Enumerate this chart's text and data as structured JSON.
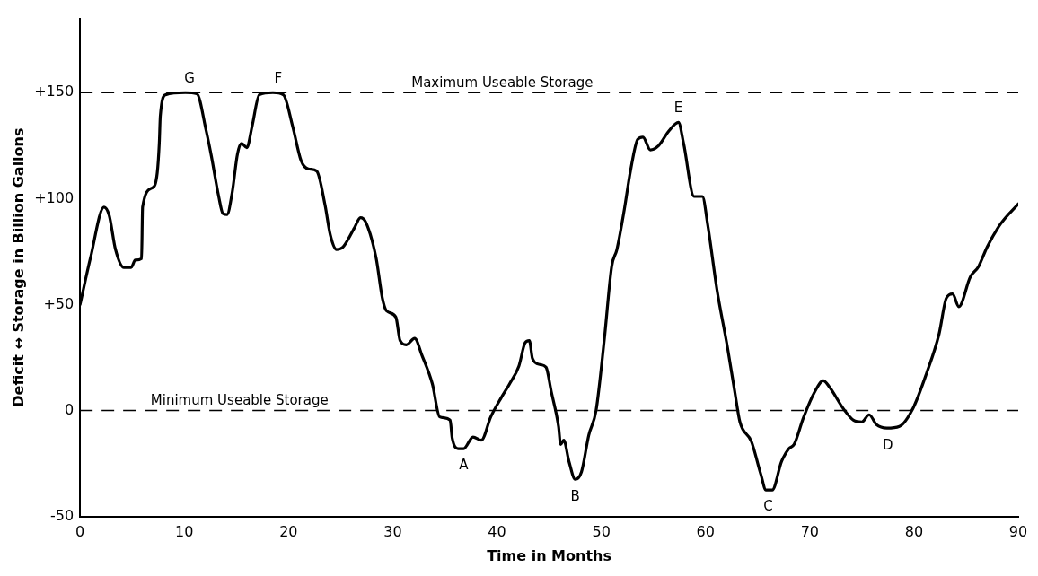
{
  "chart_data": {
    "type": "line",
    "xlabel": "Time in Months",
    "ylabel": "Deficit ↔ Storage in Billion Gallons",
    "xlim": [
      0,
      90
    ],
    "xticks": [
      0,
      10,
      20,
      30,
      40,
      50,
      60,
      70,
      80,
      90
    ],
    "ylim": [
      -50,
      185
    ],
    "yticks": [
      {
        "value": -50,
        "label": "-50"
      },
      {
        "value": 0,
        "label": "0"
      },
      {
        "value": 50,
        "label": "+50"
      },
      {
        "value": 100,
        "label": "+100"
      },
      {
        "value": 150,
        "label": "+150"
      }
    ],
    "grid": false,
    "legend": false,
    "marker": "none",
    "line_style": "solid",
    "series": [
      {
        "color": "#000000",
        "x": [
          0,
          1,
          2.3,
          2.8,
          3.4,
          4.2,
          4.9,
          5.3,
          5.9,
          6.0,
          6.9,
          7.4,
          7.6,
          7.7,
          8.2,
          10.1,
          11.2,
          12.1,
          12.6,
          13.3,
          13.7,
          14.1,
          14.6,
          15.1,
          15.5,
          16,
          16.5,
          17.2,
          18.5,
          19.5,
          20.4,
          21.2,
          21.9,
          22.7,
          23.5,
          24,
          24.6,
          25.2,
          26.3,
          26.9,
          27.4,
          28.4,
          29,
          29.4,
          30.3,
          30.7,
          31.3,
          32.1,
          32.8,
          33.8,
          34.5,
          35.5,
          35.7,
          36.3,
          36.8,
          37.7,
          38.5,
          39.4,
          40.4,
          41.2,
          42.1,
          42.7,
          43.1,
          43.4,
          44.1,
          44.7,
          45.2,
          45.9,
          46.1,
          46.4,
          46.9,
          47.5,
          48.1,
          48.8,
          49.5,
          50.3,
          51,
          51.5,
          52.2,
          52.8,
          53.5,
          54,
          54.7,
          55.5,
          56.5,
          57.4,
          57.9,
          58.9,
          59.7,
          60.2,
          61.1,
          62.1,
          62.8,
          63.3,
          64.4,
          65.3,
          65.8,
          66.4,
          67.3,
          68,
          68.5,
          69.4,
          70.5,
          71.3,
          71.9,
          73.2,
          74.2,
          75,
          75.7,
          76.4,
          77.4,
          78.6,
          79.9,
          81.2,
          82.4,
          83.1,
          83.7,
          84.3,
          85.4,
          86.2,
          87,
          88.3,
          90
        ],
        "values": [
          50,
          72,
          96,
          92,
          76,
          67.5,
          67.5,
          71,
          71.7,
          96,
          105,
          112,
          126,
          139,
          149,
          150,
          149.5,
          132,
          120,
          101,
          93,
          92.5,
          103,
          121,
          126,
          124,
          134,
          149,
          150,
          149,
          134,
          118,
          114,
          113,
          97,
          83,
          76,
          77,
          86,
          91,
          89,
          72,
          53,
          47,
          44,
          33,
          31,
          34,
          26,
          12.5,
          -3,
          -4.5,
          -13,
          -18,
          -18,
          -12.5,
          -14,
          -3,
          6,
          12.5,
          21,
          32,
          33,
          24.5,
          21.7,
          20.4,
          9,
          -7.5,
          -16,
          -14,
          -24,
          -32.5,
          -29,
          -11.7,
          0,
          34,
          68,
          76,
          94.5,
          113,
          128,
          129,
          123,
          125,
          132,
          136,
          126,
          101,
          101,
          88,
          57,
          30,
          9,
          -5.4,
          -14.6,
          -30,
          -37.5,
          -37.5,
          -24,
          -18,
          -16,
          -3.3,
          9,
          14,
          11,
          1,
          -4.6,
          -5.4,
          -2,
          -6.7,
          -8.3,
          -7.5,
          1,
          17.5,
          36,
          53,
          55,
          49,
          63,
          68,
          77,
          88,
          97.5
        ]
      }
    ],
    "ref_lines": [
      {
        "axis": "y",
        "value": 150,
        "label": "Maximum Useable Storage",
        "color": "#000000",
        "line_style": "dashed"
      },
      {
        "axis": "y",
        "value": 0,
        "label": "Minimum Useable Storage",
        "color": "#000000",
        "line_style": "dashed"
      }
    ],
    "annotations": [
      {
        "text": "G",
        "x": 10.5,
        "y": 150
      },
      {
        "text": "F",
        "x": 19,
        "y": 150
      },
      {
        "text": "E",
        "x": 57.4,
        "y": 136
      },
      {
        "text": "A",
        "x": 36.8,
        "y": -18
      },
      {
        "text": "B",
        "x": 47.5,
        "y": -32.5
      },
      {
        "text": "C",
        "x": 66,
        "y": -37.5
      },
      {
        "text": "D",
        "x": 77.5,
        "y": -8.3
      }
    ]
  }
}
